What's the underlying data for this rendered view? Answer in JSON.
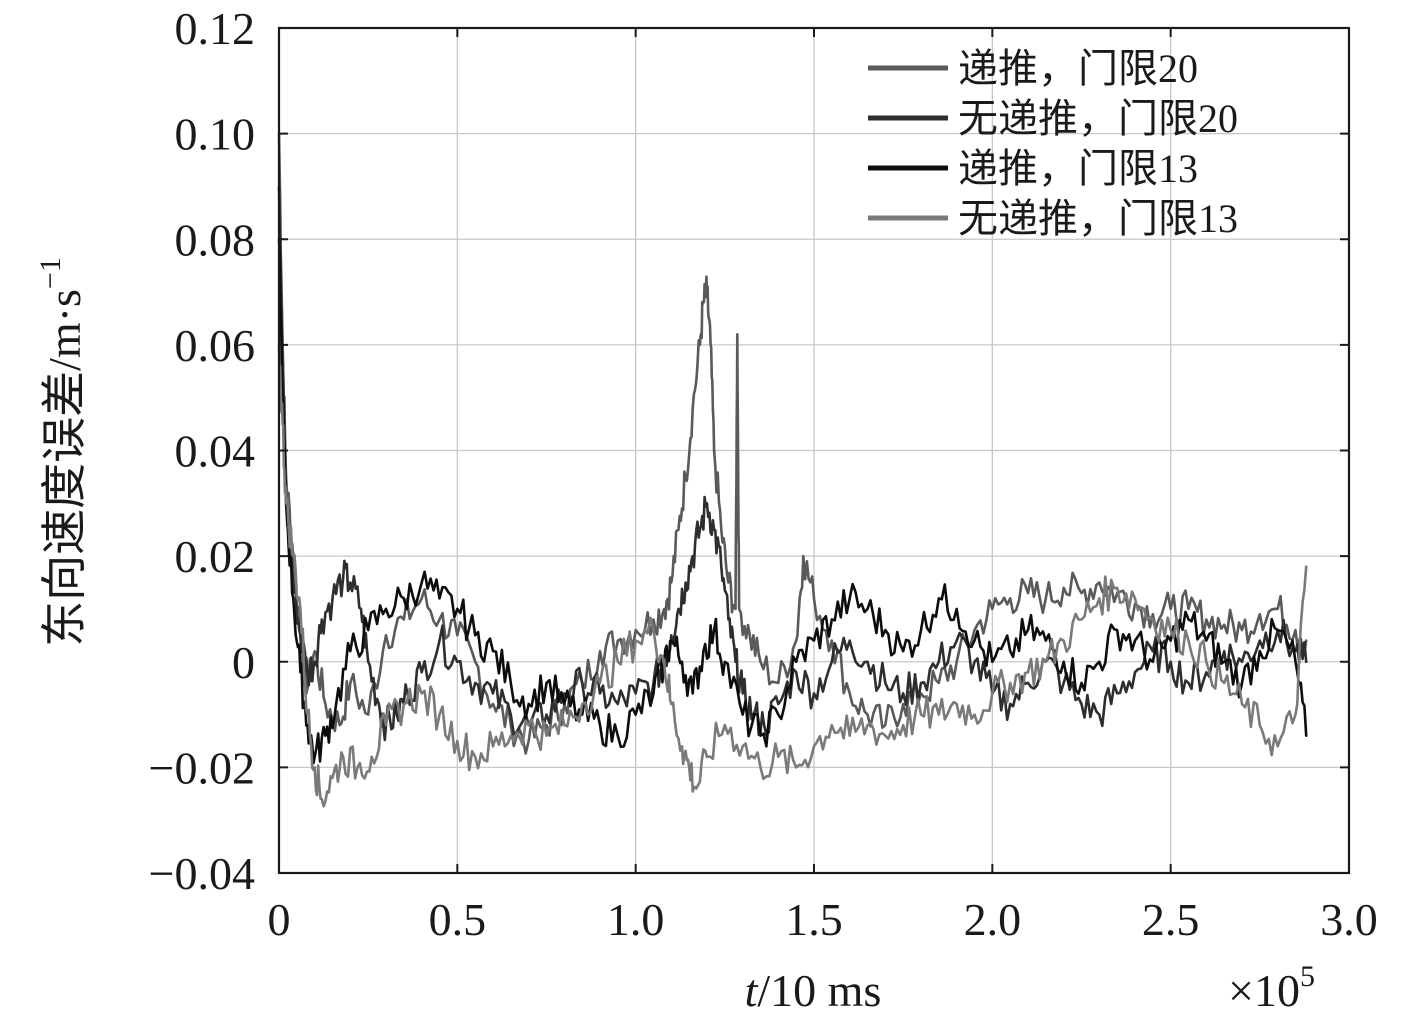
{
  "chart_data": {
    "type": "line",
    "title": "",
    "xlabel": {
      "italic": "t",
      "rest": "/10 ms"
    },
    "ylabel": {
      "text": "东向速度误差/m·s",
      "superscript": "−1"
    },
    "x_multiplier": {
      "base": "×10",
      "exponent": "5"
    },
    "xlim": [
      0,
      3.0
    ],
    "ylim": [
      -0.04,
      0.12
    ],
    "x_ticks": [
      0,
      0.5,
      1.0,
      1.5,
      2.0,
      2.5,
      3.0
    ],
    "x_tick_labels": [
      "0",
      "0.5",
      "1.0",
      "1.5",
      "2.0",
      "2.5",
      "3.0"
    ],
    "y_ticks": [
      -0.04,
      -0.02,
      0,
      0.02,
      0.04,
      0.06,
      0.08,
      0.1,
      0.12
    ],
    "y_tick_labels": [
      "−0.04",
      "−0.02",
      "0",
      "0.02",
      "0.04",
      "0.06",
      "0.08",
      "0.10",
      "0.12"
    ],
    "grid": true,
    "legend_position": "top-right",
    "series": [
      {
        "name": "递推，门限20",
        "color": "#5a5a5a",
        "points": [
          [
            0,
            0.1
          ],
          [
            0.01,
            0.06
          ],
          [
            0.02,
            0.035
          ],
          [
            0.04,
            0.02
          ],
          [
            0.06,
            0.005
          ],
          [
            0.08,
            -0.005
          ],
          [
            0.1,
            0.002
          ],
          [
            0.13,
            -0.008
          ],
          [
            0.17,
            -0.012
          ],
          [
            0.2,
            -0.004
          ],
          [
            0.25,
            -0.01
          ],
          [
            0.3,
            0.005
          ],
          [
            0.35,
            0.008
          ],
          [
            0.4,
            0.012
          ],
          [
            0.45,
            0.008
          ],
          [
            0.5,
            0.005
          ],
          [
            0.55,
            0.0
          ],
          [
            0.6,
            -0.008
          ],
          [
            0.65,
            -0.012
          ],
          [
            0.7,
            -0.015
          ],
          [
            0.75,
            -0.012
          ],
          [
            0.8,
            -0.008
          ],
          [
            0.85,
            -0.004
          ],
          [
            0.9,
            0.002
          ],
          [
            0.95,
            0.004
          ],
          [
            1.0,
            0.006
          ],
          [
            1.05,
            0.008
          ],
          [
            1.08,
            0.01
          ],
          [
            1.1,
            0.015
          ],
          [
            1.12,
            0.025
          ],
          [
            1.14,
            0.035
          ],
          [
            1.16,
            0.048
          ],
          [
            1.18,
            0.06
          ],
          [
            1.19,
            0.068
          ],
          [
            1.2,
            0.07
          ],
          [
            1.21,
            0.06
          ],
          [
            1.22,
            0.04
          ],
          [
            1.24,
            0.025
          ],
          [
            1.26,
            0.015
          ],
          [
            1.28,
            0.01
          ],
          [
            1.285,
            0.062
          ],
          [
            1.29,
            0.01
          ],
          [
            1.32,
            0.005
          ],
          [
            1.35,
            0.0
          ],
          [
            1.4,
            -0.004
          ],
          [
            1.45,
            0.004
          ],
          [
            1.47,
            0.02
          ],
          [
            1.5,
            0.012
          ],
          [
            1.55,
            0.004
          ],
          [
            1.6,
            -0.006
          ],
          [
            1.65,
            -0.01
          ],
          [
            1.7,
            -0.012
          ],
          [
            1.75,
            -0.008
          ],
          [
            1.8,
            -0.006
          ],
          [
            1.85,
            -0.004
          ],
          [
            1.9,
            0.0
          ],
          [
            1.95,
            0.006
          ],
          [
            2.0,
            0.01
          ],
          [
            2.05,
            0.012
          ],
          [
            2.1,
            0.013
          ],
          [
            2.15,
            0.012
          ],
          [
            2.2,
            0.014
          ],
          [
            2.25,
            0.013
          ],
          [
            2.3,
            0.015
          ],
          [
            2.35,
            0.013
          ],
          [
            2.4,
            0.011
          ],
          [
            2.45,
            0.009
          ],
          [
            2.5,
            0.01
          ],
          [
            2.55,
            0.01
          ],
          [
            2.6,
            0.008
          ],
          [
            2.65,
            0.007
          ],
          [
            2.7,
            0.006
          ],
          [
            2.75,
            0.009
          ],
          [
            2.8,
            0.01
          ],
          [
            2.85,
            0.006
          ],
          [
            2.88,
            0.004
          ]
        ]
      },
      {
        "name": "无递推，门限20",
        "color": "#2e2e2e",
        "points": [
          [
            0,
            0.09
          ],
          [
            0.01,
            0.055
          ],
          [
            0.02,
            0.03
          ],
          [
            0.04,
            0.015
          ],
          [
            0.06,
            0.005
          ],
          [
            0.08,
            -0.002
          ],
          [
            0.1,
            0.0
          ],
          [
            0.12,
            0.008
          ],
          [
            0.15,
            0.012
          ],
          [
            0.18,
            0.016
          ],
          [
            0.2,
            0.015
          ],
          [
            0.23,
            0.01
          ],
          [
            0.25,
            0.0
          ],
          [
            0.28,
            -0.008
          ],
          [
            0.3,
            -0.012
          ],
          [
            0.33,
            -0.01
          ],
          [
            0.36,
            -0.006
          ],
          [
            0.4,
            -0.002
          ],
          [
            0.45,
            0.004
          ],
          [
            0.5,
            0.0
          ],
          [
            0.55,
            -0.004
          ],
          [
            0.6,
            -0.006
          ],
          [
            0.65,
            -0.01
          ],
          [
            0.7,
            -0.012
          ],
          [
            0.75,
            -0.01
          ],
          [
            0.8,
            -0.006
          ],
          [
            0.85,
            -0.004
          ],
          [
            0.9,
            -0.006
          ],
          [
            0.95,
            -0.008
          ],
          [
            1.0,
            -0.006
          ],
          [
            1.05,
            -0.004
          ],
          [
            1.08,
            0.0
          ],
          [
            1.1,
            0.005
          ],
          [
            1.12,
            0.01
          ],
          [
            1.14,
            0.015
          ],
          [
            1.16,
            0.02
          ],
          [
            1.18,
            0.025
          ],
          [
            1.2,
            0.03
          ],
          [
            1.22,
            0.025
          ],
          [
            1.24,
            0.018
          ],
          [
            1.26,
            0.008
          ],
          [
            1.28,
            0.0
          ],
          [
            1.3,
            -0.006
          ],
          [
            1.33,
            -0.01
          ],
          [
            1.36,
            -0.012
          ],
          [
            1.4,
            -0.008
          ],
          [
            1.45,
            -0.002
          ],
          [
            1.5,
            -0.006
          ],
          [
            1.55,
            0.0
          ],
          [
            1.6,
            0.004
          ],
          [
            1.65,
            0.0
          ],
          [
            1.7,
            -0.004
          ],
          [
            1.75,
            -0.006
          ],
          [
            1.8,
            -0.004
          ],
          [
            1.85,
            0.0
          ],
          [
            1.9,
            0.004
          ],
          [
            1.95,
            0.0
          ],
          [
            2.0,
            -0.006
          ],
          [
            2.05,
            -0.008
          ],
          [
            2.1,
            -0.004
          ],
          [
            2.15,
            0.0
          ],
          [
            2.2,
            -0.004
          ],
          [
            2.25,
            -0.008
          ],
          [
            2.3,
            -0.01
          ],
          [
            2.35,
            -0.006
          ],
          [
            2.4,
            -0.002
          ],
          [
            2.45,
            0.002
          ],
          [
            2.5,
            0.0
          ],
          [
            2.55,
            -0.004
          ],
          [
            2.6,
            -0.002
          ],
          [
            2.65,
            0.002
          ],
          [
            2.7,
            0.0
          ],
          [
            2.75,
            0.004
          ],
          [
            2.8,
            0.006
          ],
          [
            2.85,
            0.002
          ],
          [
            2.88,
            0.0
          ]
        ]
      },
      {
        "name": "递推，门限13",
        "color": "#0d0d0d",
        "points": [
          [
            0,
            0.08
          ],
          [
            0.01,
            0.05
          ],
          [
            0.02,
            0.03
          ],
          [
            0.04,
            0.012
          ],
          [
            0.06,
            -0.002
          ],
          [
            0.08,
            -0.012
          ],
          [
            0.1,
            -0.018
          ],
          [
            0.13,
            -0.014
          ],
          [
            0.16,
            -0.008
          ],
          [
            0.2,
            0.002
          ],
          [
            0.25,
            0.006
          ],
          [
            0.3,
            0.01
          ],
          [
            0.35,
            0.012
          ],
          [
            0.4,
            0.015
          ],
          [
            0.45,
            0.012
          ],
          [
            0.5,
            0.01
          ],
          [
            0.55,
            0.005
          ],
          [
            0.6,
            0.002
          ],
          [
            0.65,
            -0.004
          ],
          [
            0.7,
            -0.008
          ],
          [
            0.75,
            -0.004
          ],
          [
            0.8,
            -0.008
          ],
          [
            0.85,
            -0.01
          ],
          [
            0.9,
            -0.012
          ],
          [
            0.95,
            -0.014
          ],
          [
            1.0,
            -0.01
          ],
          [
            1.05,
            -0.006
          ],
          [
            1.08,
            0.0
          ],
          [
            1.1,
            0.004
          ],
          [
            1.13,
            0.0
          ],
          [
            1.16,
            -0.006
          ],
          [
            1.19,
            0.002
          ],
          [
            1.22,
            0.006
          ],
          [
            1.25,
            0.0
          ],
          [
            1.3,
            -0.01
          ],
          [
            1.35,
            -0.014
          ],
          [
            1.4,
            -0.01
          ],
          [
            1.45,
            0.0
          ],
          [
            1.5,
            0.004
          ],
          [
            1.55,
            0.008
          ],
          [
            1.6,
            0.012
          ],
          [
            1.65,
            0.01
          ],
          [
            1.7,
            0.006
          ],
          [
            1.75,
            0.002
          ],
          [
            1.8,
            0.006
          ],
          [
            1.85,
            0.012
          ],
          [
            1.9,
            0.01
          ],
          [
            1.95,
            0.004
          ],
          [
            2.0,
            0.0
          ],
          [
            2.05,
            0.002
          ],
          [
            2.1,
            0.006
          ],
          [
            2.15,
            0.004
          ],
          [
            2.2,
            0.0
          ],
          [
            2.25,
            -0.004
          ],
          [
            2.3,
            0.0
          ],
          [
            2.35,
            0.006
          ],
          [
            2.4,
            0.004
          ],
          [
            2.45,
            0.0
          ],
          [
            2.5,
            0.004
          ],
          [
            2.55,
            0.008
          ],
          [
            2.6,
            0.004
          ],
          [
            2.65,
            0.0
          ],
          [
            2.7,
            -0.004
          ],
          [
            2.75,
            0.002
          ],
          [
            2.8,
            0.006
          ],
          [
            2.85,
            0.0
          ],
          [
            2.88,
            -0.014
          ]
        ]
      },
      {
        "name": "无递推，门限13",
        "color": "#7a7a7a",
        "points": [
          [
            0,
            0.06
          ],
          [
            0.01,
            0.045
          ],
          [
            0.02,
            0.03
          ],
          [
            0.04,
            0.02
          ],
          [
            0.06,
            0.01
          ],
          [
            0.08,
            -0.01
          ],
          [
            0.1,
            -0.02
          ],
          [
            0.12,
            -0.026
          ],
          [
            0.15,
            -0.022
          ],
          [
            0.18,
            -0.018
          ],
          [
            0.22,
            -0.02
          ],
          [
            0.26,
            -0.018
          ],
          [
            0.3,
            -0.012
          ],
          [
            0.35,
            -0.008
          ],
          [
            0.4,
            -0.006
          ],
          [
            0.45,
            -0.01
          ],
          [
            0.5,
            -0.015
          ],
          [
            0.55,
            -0.018
          ],
          [
            0.6,
            -0.016
          ],
          [
            0.65,
            -0.014
          ],
          [
            0.7,
            -0.012
          ],
          [
            0.75,
            -0.014
          ],
          [
            0.8,
            -0.012
          ],
          [
            0.85,
            -0.008
          ],
          [
            0.9,
            -0.004
          ],
          [
            0.95,
            0.0
          ],
          [
            1.0,
            0.004
          ],
          [
            1.05,
            0.006
          ],
          [
            1.08,
            0.0
          ],
          [
            1.1,
            -0.008
          ],
          [
            1.13,
            -0.016
          ],
          [
            1.15,
            -0.02
          ],
          [
            1.17,
            -0.024
          ],
          [
            1.2,
            -0.018
          ],
          [
            1.25,
            -0.012
          ],
          [
            1.3,
            -0.016
          ],
          [
            1.35,
            -0.02
          ],
          [
            1.4,
            -0.018
          ],
          [
            1.45,
            -0.02
          ],
          [
            1.5,
            -0.016
          ],
          [
            1.55,
            -0.012
          ],
          [
            1.6,
            -0.014
          ],
          [
            1.65,
            -0.012
          ],
          [
            1.7,
            -0.014
          ],
          [
            1.75,
            -0.012
          ],
          [
            1.8,
            -0.01
          ],
          [
            1.85,
            -0.01
          ],
          [
            1.9,
            -0.008
          ],
          [
            1.95,
            -0.01
          ],
          [
            2.0,
            -0.006
          ],
          [
            2.05,
            -0.004
          ],
          [
            2.1,
            -0.002
          ],
          [
            2.15,
            0.0
          ],
          [
            2.2,
            0.004
          ],
          [
            2.25,
            0.008
          ],
          [
            2.3,
            0.012
          ],
          [
            2.35,
            0.014
          ],
          [
            2.4,
            0.012
          ],
          [
            2.45,
            0.008
          ],
          [
            2.5,
            0.006
          ],
          [
            2.55,
            0.004
          ],
          [
            2.6,
            0.0
          ],
          [
            2.65,
            -0.004
          ],
          [
            2.7,
            -0.008
          ],
          [
            2.75,
            -0.012
          ],
          [
            2.8,
            -0.016
          ],
          [
            2.85,
            -0.01
          ],
          [
            2.88,
            0.018
          ]
        ]
      }
    ]
  }
}
